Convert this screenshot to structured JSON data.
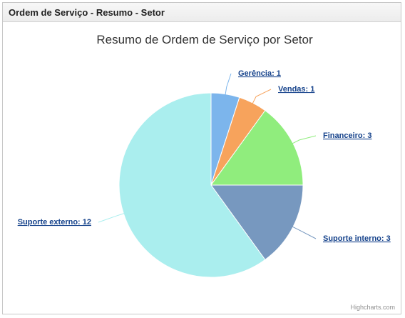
{
  "panel": {
    "title": "Ordem de Serviço - Resumo - Setor"
  },
  "chart_data": {
    "type": "pie",
    "title": "Resumo de Ordem de Serviço por Setor",
    "categories": [
      "Gerência",
      "Vendas",
      "Financeiro",
      "Suporte interno",
      "Suporte externo"
    ],
    "values": [
      1,
      1,
      3,
      3,
      12
    ],
    "labels": [
      "Gerência: 1",
      "Vendas: 1",
      "Financeiro: 3",
      "Suporte interno: 3",
      "Suporte externo: 12"
    ],
    "colors": [
      "#7cb5ec",
      "#f7a35c",
      "#90ed7d",
      "#7798bf",
      "#aaeeee"
    ],
    "label_color": "#15428b",
    "credits": "Highcharts.com"
  }
}
